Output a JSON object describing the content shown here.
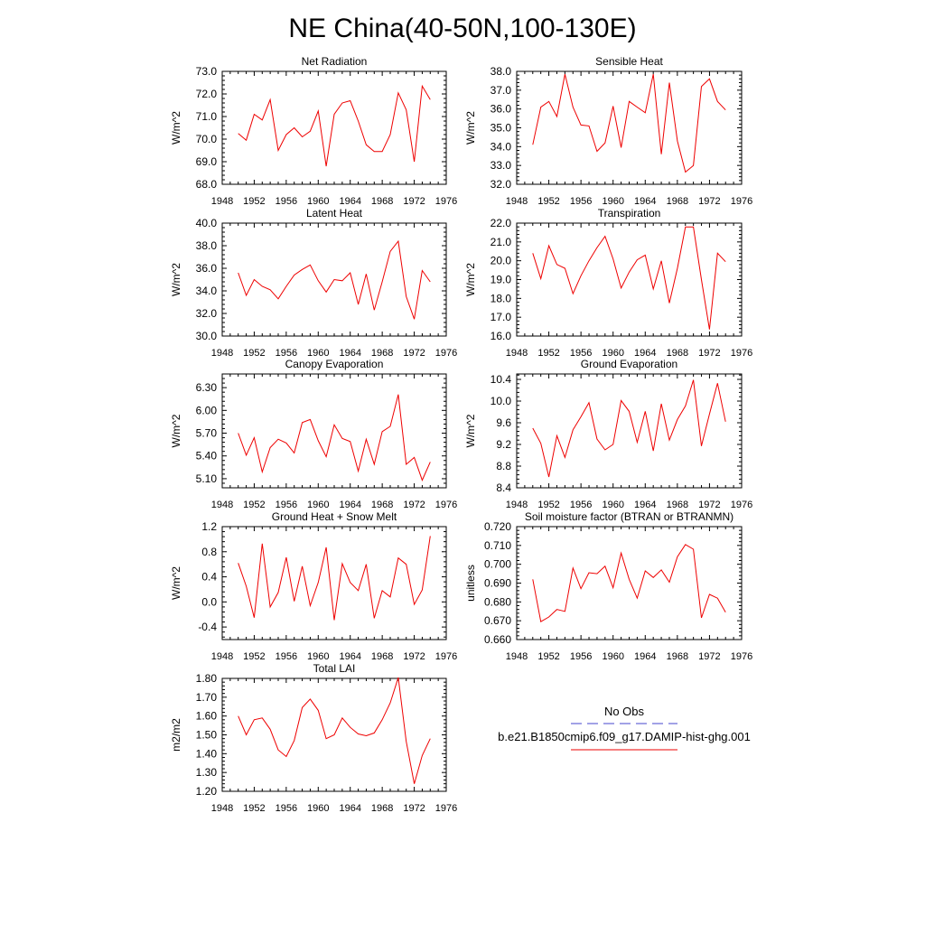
{
  "page_title": "NE China(40-50N,100-130E)",
  "legend": {
    "obs_label": "No Obs",
    "obs_color": "#4444cc",
    "case_label": "b.e21.B1850cmip6.f09_g17.DAMIP-hist-ghg.001",
    "case_color": "#ee0000"
  },
  "chart_data": [
    {
      "type": "line",
      "title": "Net Radiation",
      "ylabel": "W/m^2",
      "xlim": [
        1948,
        1976
      ],
      "ylim": [
        68.0,
        73.0
      ],
      "x_ticks": [
        "1948",
        "1952",
        "1956",
        "1960",
        "1964",
        "1968",
        "1972",
        "1976"
      ],
      "y_ticks": [
        "68.0",
        "69.0",
        "70.0",
        "71.0",
        "72.0",
        "73.0"
      ],
      "x": [
        1950,
        1951,
        1952,
        1953,
        1954,
        1955,
        1956,
        1957,
        1958,
        1959,
        1960,
        1961,
        1962,
        1963,
        1964,
        1965,
        1966,
        1967,
        1968,
        1969,
        1970,
        1971,
        1972,
        1973,
        1974
      ],
      "series": [
        {
          "values": [
            70.25,
            69.95,
            71.1,
            70.85,
            71.75,
            69.5,
            70.2,
            70.5,
            70.1,
            70.35,
            71.25,
            68.8,
            71.1,
            71.6,
            71.7,
            70.8,
            69.75,
            69.45,
            69.45,
            70.2,
            72.05,
            71.3,
            69.0,
            72.35,
            71.75
          ]
        }
      ]
    },
    {
      "type": "line",
      "title": "Sensible Heat",
      "ylabel": "W/m^2",
      "xlim": [
        1948,
        1976
      ],
      "ylim": [
        32.0,
        38.0
      ],
      "x_ticks": [
        "1948",
        "1952",
        "1956",
        "1960",
        "1964",
        "1968",
        "1972",
        "1976"
      ],
      "y_ticks": [
        "32.0",
        "33.0",
        "34.0",
        "35.0",
        "36.0",
        "37.0",
        "38.0"
      ],
      "x": [
        1950,
        1951,
        1952,
        1953,
        1954,
        1955,
        1956,
        1957,
        1958,
        1959,
        1960,
        1961,
        1962,
        1963,
        1964,
        1965,
        1966,
        1967,
        1968,
        1969,
        1970,
        1971,
        1972,
        1973,
        1974
      ],
      "series": [
        {
          "values": [
            34.1,
            36.1,
            36.4,
            35.6,
            37.85,
            36.1,
            35.15,
            35.1,
            33.75,
            34.2,
            36.15,
            33.95,
            36.4,
            36.1,
            35.8,
            37.85,
            33.6,
            37.4,
            34.3,
            32.65,
            33.0,
            37.2,
            37.6,
            36.4,
            35.95
          ]
        }
      ]
    },
    {
      "type": "line",
      "title": "Latent Heat",
      "ylabel": "W/m^2",
      "xlim": [
        1948,
        1976
      ],
      "ylim": [
        30.0,
        40.0
      ],
      "x_ticks": [
        "1948",
        "1952",
        "1956",
        "1960",
        "1964",
        "1968",
        "1972",
        "1976"
      ],
      "y_ticks": [
        "30.0",
        "32.0",
        "34.0",
        "36.0",
        "38.0",
        "40.0"
      ],
      "x": [
        1950,
        1951,
        1952,
        1953,
        1954,
        1955,
        1956,
        1957,
        1958,
        1959,
        1960,
        1961,
        1962,
        1963,
        1964,
        1965,
        1966,
        1967,
        1968,
        1969,
        1970,
        1971,
        1972,
        1973,
        1974
      ],
      "series": [
        {
          "values": [
            35.6,
            33.6,
            35.0,
            34.4,
            34.1,
            33.3,
            34.4,
            35.4,
            35.9,
            36.3,
            34.9,
            33.9,
            35.0,
            34.9,
            35.6,
            32.8,
            35.5,
            32.3,
            34.8,
            37.5,
            38.4,
            33.5,
            31.5,
            35.8,
            34.8
          ]
        }
      ]
    },
    {
      "type": "line",
      "title": "Transpiration",
      "ylabel": "W/m^2",
      "xlim": [
        1948,
        1976
      ],
      "ylim": [
        16.0,
        22.0
      ],
      "x_ticks": [
        "1948",
        "1952",
        "1956",
        "1960",
        "1964",
        "1968",
        "1972",
        "1976"
      ],
      "y_ticks": [
        "16.0",
        "17.0",
        "18.0",
        "19.0",
        "20.0",
        "21.0",
        "22.0"
      ],
      "x": [
        1950,
        1951,
        1952,
        1953,
        1954,
        1955,
        1956,
        1957,
        1958,
        1959,
        1960,
        1961,
        1962,
        1963,
        1964,
        1965,
        1966,
        1967,
        1968,
        1969,
        1970,
        1971,
        1972,
        1973,
        1974
      ],
      "series": [
        {
          "values": [
            20.4,
            19.05,
            20.8,
            19.8,
            19.6,
            18.25,
            19.2,
            20.0,
            20.7,
            21.3,
            20.1,
            18.55,
            19.4,
            20.05,
            20.3,
            18.5,
            20.0,
            17.75,
            19.6,
            21.8,
            21.8,
            19.0,
            16.35,
            20.4,
            19.95
          ]
        }
      ]
    },
    {
      "type": "line",
      "title": "Canopy Evaporation",
      "ylabel": "W/m^2",
      "xlim": [
        1948,
        1976
      ],
      "ylim": [
        4.98,
        6.48
      ],
      "x_ticks": [
        "1948",
        "1952",
        "1956",
        "1960",
        "1964",
        "1968",
        "1972",
        "1976"
      ],
      "y_ticks": [
        "5.10",
        "5.40",
        "5.70",
        "6.00",
        "6.30"
      ],
      "y_tick_values": [
        5.1,
        5.4,
        5.7,
        6.0,
        6.3
      ],
      "x": [
        1950,
        1951,
        1952,
        1953,
        1954,
        1955,
        1956,
        1957,
        1958,
        1959,
        1960,
        1961,
        1962,
        1963,
        1964,
        1965,
        1966,
        1967,
        1968,
        1969,
        1970,
        1971,
        1972,
        1973,
        1974
      ],
      "series": [
        {
          "values": [
            5.7,
            5.41,
            5.64,
            5.19,
            5.51,
            5.62,
            5.57,
            5.44,
            5.84,
            5.88,
            5.6,
            5.39,
            5.81,
            5.63,
            5.59,
            5.2,
            5.62,
            5.29,
            5.72,
            5.79,
            6.21,
            5.29,
            5.38,
            5.08,
            5.32
          ]
        }
      ]
    },
    {
      "type": "line",
      "title": "Ground Evaporation",
      "ylabel": "W/m^2",
      "xlim": [
        1948,
        1976
      ],
      "ylim": [
        8.4,
        10.5
      ],
      "x_ticks": [
        "1948",
        "1952",
        "1956",
        "1960",
        "1964",
        "1968",
        "1972",
        "1976"
      ],
      "y_ticks": [
        "8.4",
        "8.8",
        "9.2",
        "9.6",
        "10.0",
        "10.4"
      ],
      "y_tick_values": [
        8.4,
        8.8,
        9.2,
        9.6,
        10.0,
        10.4
      ],
      "x": [
        1950,
        1951,
        1952,
        1953,
        1954,
        1955,
        1956,
        1957,
        1958,
        1959,
        1960,
        1961,
        1962,
        1963,
        1964,
        1965,
        1966,
        1967,
        1968,
        1969,
        1970,
        1971,
        1972,
        1973,
        1974
      ],
      "series": [
        {
          "values": [
            9.5,
            9.22,
            8.6,
            9.36,
            8.96,
            9.47,
            9.71,
            9.97,
            9.3,
            9.1,
            9.2,
            10.01,
            9.81,
            9.24,
            9.81,
            9.08,
            9.95,
            9.28,
            9.66,
            9.91,
            10.39,
            9.17,
            9.76,
            10.33,
            9.62
          ]
        }
      ]
    },
    {
      "type": "line",
      "title": "Ground Heat + Snow Melt",
      "ylabel": "W/m^2",
      "xlim": [
        1948,
        1976
      ],
      "ylim": [
        -0.6,
        1.2
      ],
      "x_ticks": [
        "1948",
        "1952",
        "1956",
        "1960",
        "1964",
        "1968",
        "1972",
        "1976"
      ],
      "y_ticks": [
        "-0.4",
        "0.0",
        "0.4",
        "0.8",
        "1.2"
      ],
      "y_tick_values": [
        -0.4,
        0.0,
        0.4,
        0.8,
        1.2
      ],
      "x": [
        1950,
        1951,
        1952,
        1953,
        1954,
        1955,
        1956,
        1957,
        1958,
        1959,
        1960,
        1961,
        1962,
        1963,
        1964,
        1965,
        1966,
        1967,
        1968,
        1969,
        1970,
        1971,
        1972,
        1973,
        1974
      ],
      "series": [
        {
          "values": [
            0.62,
            0.25,
            -0.25,
            0.93,
            -0.08,
            0.15,
            0.71,
            0.01,
            0.57,
            -0.06,
            0.31,
            0.87,
            -0.29,
            0.61,
            0.31,
            0.18,
            0.6,
            -0.26,
            0.18,
            0.08,
            0.7,
            0.6,
            -0.04,
            0.19,
            1.05
          ]
        }
      ]
    },
    {
      "type": "line",
      "title": "Soil moisture factor (BTRAN or BTRANMN)",
      "ylabel": "unitless",
      "xlim": [
        1948,
        1976
      ],
      "ylim": [
        0.66,
        0.72
      ],
      "x_ticks": [
        "1948",
        "1952",
        "1956",
        "1960",
        "1964",
        "1968",
        "1972",
        "1976"
      ],
      "y_ticks": [
        "0.660",
        "0.670",
        "0.680",
        "0.690",
        "0.700",
        "0.710",
        "0.720"
      ],
      "x": [
        1950,
        1951,
        1952,
        1953,
        1954,
        1955,
        1956,
        1957,
        1958,
        1959,
        1960,
        1961,
        1962,
        1963,
        1964,
        1965,
        1966,
        1967,
        1968,
        1969,
        1970,
        1971,
        1972,
        1973,
        1974
      ],
      "series": [
        {
          "values": [
            0.692,
            0.6695,
            0.672,
            0.676,
            0.675,
            0.698,
            0.687,
            0.6955,
            0.695,
            0.699,
            0.6875,
            0.706,
            0.692,
            0.682,
            0.6965,
            0.693,
            0.697,
            0.6905,
            0.704,
            0.7105,
            0.708,
            0.6715,
            0.684,
            0.682,
            0.6745
          ]
        }
      ]
    },
    {
      "type": "line",
      "title": "Total LAI",
      "ylabel": "m2/m2",
      "xlim": [
        1948,
        1976
      ],
      "ylim": [
        1.2,
        1.8
      ],
      "x_ticks": [
        "1948",
        "1952",
        "1956",
        "1960",
        "1964",
        "1968",
        "1972",
        "1976"
      ],
      "y_ticks": [
        "1.20",
        "1.30",
        "1.40",
        "1.50",
        "1.60",
        "1.70",
        "1.80"
      ],
      "x": [
        1950,
        1951,
        1952,
        1953,
        1954,
        1955,
        1956,
        1957,
        1958,
        1959,
        1960,
        1961,
        1962,
        1963,
        1964,
        1965,
        1966,
        1967,
        1968,
        1969,
        1970,
        1971,
        1972,
        1973,
        1974
      ],
      "series": [
        {
          "values": [
            1.6,
            1.5,
            1.58,
            1.59,
            1.53,
            1.42,
            1.385,
            1.47,
            1.645,
            1.69,
            1.63,
            1.48,
            1.5,
            1.59,
            1.54,
            1.505,
            1.495,
            1.51,
            1.58,
            1.67,
            1.805,
            1.465,
            1.24,
            1.39,
            1.48
          ]
        }
      ]
    }
  ]
}
